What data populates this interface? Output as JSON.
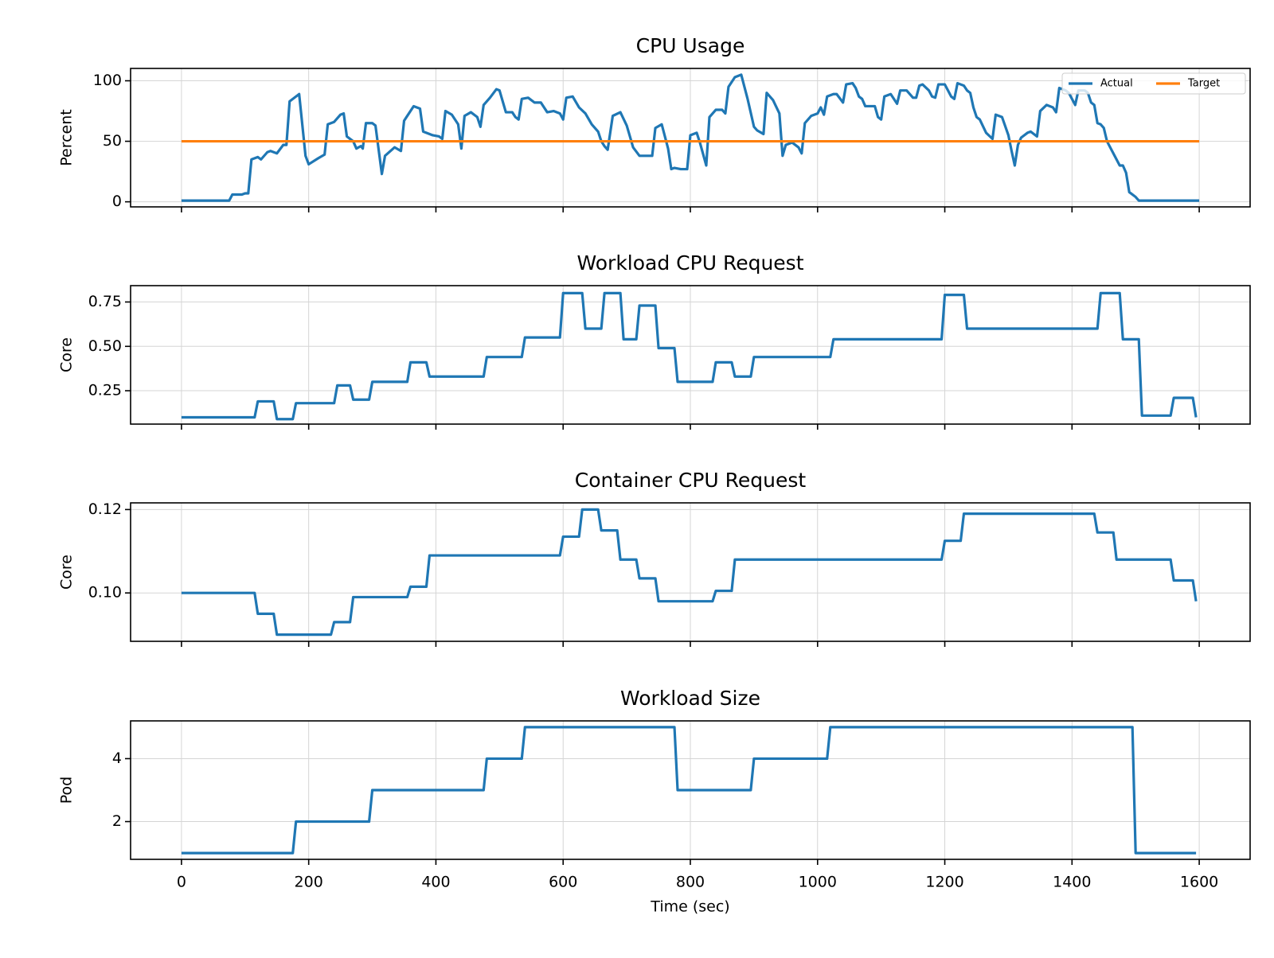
{
  "chart_data": [
    {
      "type": "line",
      "title": "CPU Usage",
      "ylabel": "Percent",
      "grid": true,
      "legend": "upper right",
      "xlim": [
        -80,
        1680
      ],
      "ylim": [
        -4.2,
        110.2
      ],
      "yticks": [
        0,
        50,
        100
      ],
      "series": [
        {
          "name": "Actual",
          "color": "#1f77b4",
          "x": [
            0,
            75,
            80,
            95,
            100,
            105,
            110,
            120,
            125,
            135,
            140,
            150,
            160,
            165,
            170,
            185,
            195,
            200,
            215,
            225,
            230,
            240,
            250,
            255,
            260,
            270,
            275,
            282,
            285,
            290,
            300,
            305,
            315,
            320,
            335,
            345,
            350,
            365,
            375,
            380,
            395,
            405,
            410,
            415,
            425,
            435,
            440,
            445,
            455,
            465,
            470,
            475,
            485,
            495,
            500,
            510,
            520,
            525,
            530,
            535,
            545,
            555,
            565,
            575,
            585,
            595,
            600,
            605,
            615,
            625,
            635,
            645,
            655,
            660,
            665,
            670,
            678,
            690,
            700,
            705,
            710,
            720,
            730,
            740,
            745,
            755,
            765,
            770,
            775,
            785,
            795,
            800,
            810,
            815,
            825,
            830,
            840,
            850,
            855,
            860,
            870,
            880,
            890,
            900,
            905,
            915,
            920,
            930,
            940,
            945,
            950,
            960,
            970,
            975,
            980,
            990,
            1000,
            1005,
            1010,
            1015,
            1025,
            1030,
            1040,
            1045,
            1055,
            1060,
            1065,
            1070,
            1075,
            1085,
            1090,
            1095,
            1100,
            1105,
            1115,
            1125,
            1130,
            1140,
            1150,
            1155,
            1160,
            1165,
            1175,
            1180,
            1185,
            1190,
            1200,
            1205,
            1210,
            1215,
            1220,
            1230,
            1235,
            1240,
            1245,
            1250,
            1255,
            1265,
            1275,
            1280,
            1290,
            1300,
            1305,
            1310,
            1315,
            1320,
            1330,
            1335,
            1345,
            1350,
            1360,
            1370,
            1375,
            1380,
            1390,
            1395,
            1405,
            1410,
            1420,
            1425,
            1430,
            1435,
            1440,
            1445,
            1450,
            1455,
            1465,
            1475,
            1480,
            1485,
            1490,
            1500,
            1505,
            1600
          ],
          "values": [
            1,
            1,
            6,
            6,
            7,
            7,
            35,
            37,
            35,
            41,
            42,
            40,
            47,
            47,
            83,
            89,
            38,
            31,
            36,
            39,
            64,
            66,
            72,
            73,
            54,
            50,
            44,
            46,
            44,
            65,
            65,
            63,
            23,
            38,
            45,
            42,
            67,
            79,
            77,
            58,
            55,
            54,
            52,
            75,
            72,
            64,
            44,
            71,
            74,
            70,
            62,
            80,
            86,
            93,
            92,
            74,
            74,
            70,
            68,
            85,
            86,
            82,
            82,
            74,
            75,
            73,
            68,
            86,
            87,
            78,
            73,
            64,
            58,
            50,
            46,
            43,
            71,
            74,
            63,
            54,
            45,
            38,
            38,
            38,
            61,
            64,
            44,
            27,
            28,
            27,
            27,
            55,
            57,
            49,
            30,
            70,
            76,
            76,
            73,
            95,
            103,
            105,
            85,
            62,
            59,
            56,
            90,
            84,
            73,
            38,
            47,
            49,
            45,
            40,
            65,
            71,
            73,
            78,
            72,
            87,
            89,
            89,
            82,
            97,
            98,
            94,
            87,
            85,
            79,
            79,
            79,
            70,
            68,
            87,
            89,
            81,
            92,
            92,
            86,
            86,
            96,
            97,
            92,
            87,
            86,
            97,
            97,
            92,
            87,
            85,
            98,
            96,
            92,
            90,
            78,
            70,
            68,
            57,
            52,
            72,
            70,
            55,
            42,
            30,
            47,
            53,
            57,
            58,
            54,
            75,
            80,
            78,
            74,
            94,
            92,
            90,
            80,
            92,
            92,
            90,
            82,
            80,
            65,
            64,
            61,
            50,
            40,
            30,
            30,
            24,
            8,
            4,
            1,
            1
          ]
        },
        {
          "name": "Target",
          "color": "#ff7f0e",
          "x": [
            0,
            1600
          ],
          "values": [
            50,
            50
          ]
        }
      ]
    },
    {
      "type": "line",
      "title": "Workload CPU Request",
      "ylabel": "Core",
      "grid": true,
      "xlim": [
        -80,
        1680
      ],
      "ylim": [
        0.062,
        0.842
      ],
      "yticks": [
        0.25,
        {
          "value": 0.5,
          "label": "0.50"
        },
        0.75
      ],
      "series": [
        {
          "color": "#1f77b4",
          "x": [
            0,
            115,
            120,
            145,
            150,
            175,
            180,
            240,
            245,
            265,
            270,
            295,
            300,
            355,
            360,
            385,
            390,
            475,
            480,
            535,
            540,
            595,
            600,
            630,
            635,
            660,
            665,
            690,
            695,
            715,
            720,
            745,
            750,
            775,
            780,
            835,
            840,
            865,
            870,
            895,
            900,
            1020,
            1025,
            1195,
            1200,
            1230,
            1235,
            1440,
            1445,
            1475,
            1480,
            1505,
            1510,
            1555,
            1560,
            1590,
            1595
          ],
          "values": [
            0.1,
            0.1,
            0.19,
            0.19,
            0.09,
            0.09,
            0.18,
            0.18,
            0.28,
            0.28,
            0.2,
            0.2,
            0.3,
            0.3,
            0.41,
            0.41,
            0.33,
            0.33,
            0.44,
            0.44,
            0.55,
            0.55,
            0.8,
            0.8,
            0.6,
            0.6,
            0.8,
            0.8,
            0.54,
            0.54,
            0.73,
            0.73,
            0.49,
            0.49,
            0.3,
            0.3,
            0.41,
            0.41,
            0.33,
            0.33,
            0.44,
            0.44,
            0.54,
            0.54,
            0.79,
            0.79,
            0.6,
            0.6,
            0.8,
            0.8,
            0.54,
            0.54,
            0.11,
            0.11,
            0.21,
            0.21,
            0.1
          ]
        }
      ]
    },
    {
      "type": "line",
      "title": "Container CPU Request",
      "ylabel": "Core",
      "grid": true,
      "xlim": [
        -80,
        1680
      ],
      "ylim": [
        0.0884,
        0.1216
      ],
      "yticks": [
        {
          "value": 0.1,
          "label": "0.10"
        },
        0.12
      ],
      "series": [
        {
          "color": "#1f77b4",
          "x": [
            0,
            115,
            120,
            145,
            150,
            235,
            240,
            265,
            270,
            355,
            360,
            385,
            390,
            595,
            600,
            625,
            630,
            655,
            660,
            685,
            690,
            715,
            720,
            745,
            750,
            835,
            840,
            865,
            870,
            1195,
            1200,
            1225,
            1230,
            1435,
            1440,
            1465,
            1470,
            1555,
            1560,
            1590,
            1595
          ],
          "values": [
            0.1,
            0.1,
            0.095,
            0.095,
            0.09,
            0.09,
            0.093,
            0.093,
            0.099,
            0.099,
            0.1015,
            0.1015,
            0.109,
            0.109,
            0.1135,
            0.1135,
            0.12,
            0.12,
            0.115,
            0.115,
            0.108,
            0.108,
            0.1035,
            0.1035,
            0.098,
            0.098,
            0.1005,
            0.1005,
            0.108,
            0.108,
            0.1125,
            0.1125,
            0.119,
            0.119,
            0.1145,
            0.1145,
            0.108,
            0.108,
            0.103,
            0.103,
            0.098
          ]
        }
      ]
    },
    {
      "type": "line",
      "title": "Workload Size",
      "ylabel": "Pod",
      "xlabel": "Time (sec)",
      "grid": true,
      "xlim": [
        -80,
        1680
      ],
      "ylim": [
        0.8,
        5.2
      ],
      "yticks": [
        2,
        4
      ],
      "xticks": [
        0,
        200,
        400,
        600,
        800,
        1000,
        1200,
        1400,
        1600
      ],
      "series": [
        {
          "color": "#1f77b4",
          "x": [
            0,
            175,
            180,
            295,
            300,
            475,
            480,
            535,
            540,
            775,
            780,
            895,
            900,
            1015,
            1020,
            1495,
            1500,
            1595
          ],
          "values": [
            1,
            1,
            2,
            2,
            3,
            3,
            4,
            4,
            5,
            5,
            3,
            3,
            4,
            4,
            5,
            5,
            1,
            1
          ]
        }
      ]
    }
  ]
}
